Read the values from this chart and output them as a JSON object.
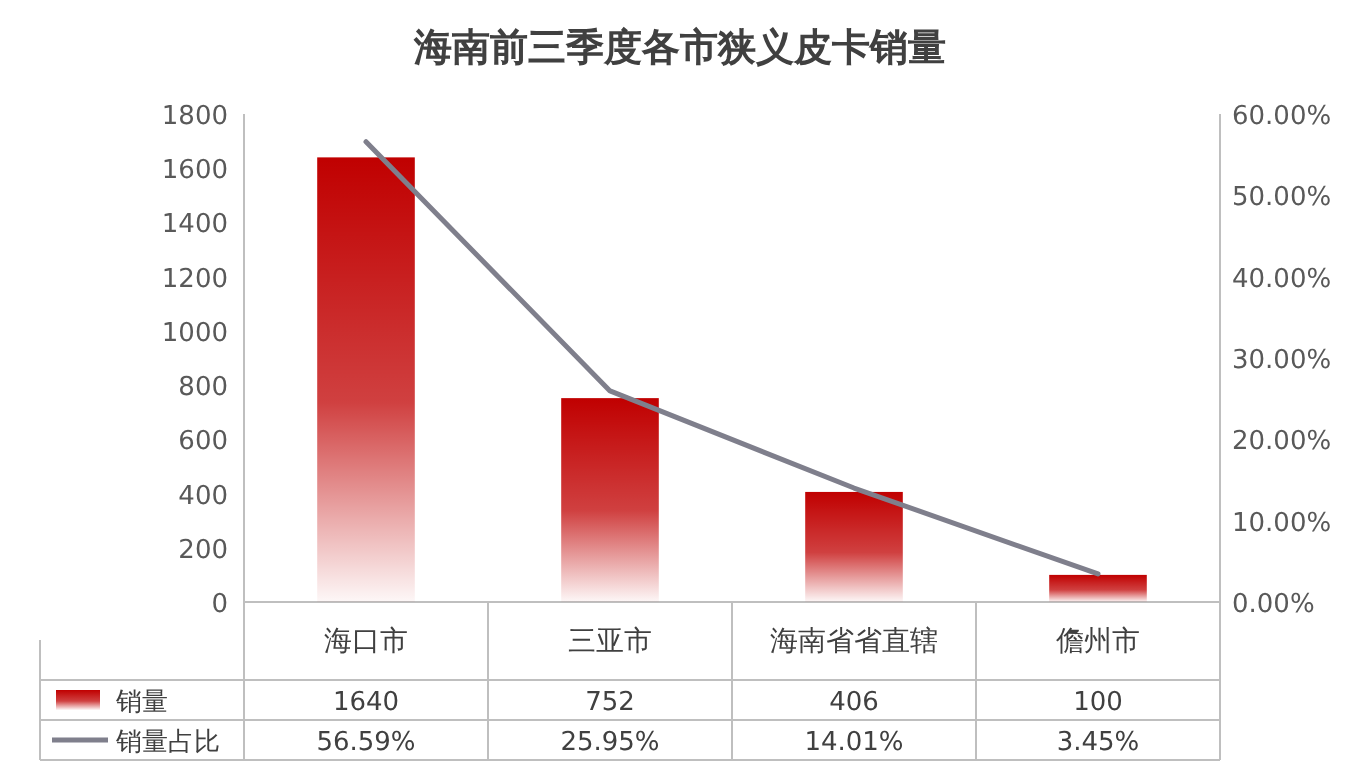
{
  "chart_data": {
    "type": "bar",
    "title": "海南前三季度各市狭义皮卡销量",
    "categories": [
      "海口市",
      "三亚市",
      "海南省省直辖",
      "儋州市"
    ],
    "series": [
      {
        "name": "销量",
        "color": "#c00000",
        "values": [
          1640,
          752,
          406,
          100
        ],
        "value_labels": [
          "1640",
          "752",
          "406",
          "100"
        ]
      },
      {
        "name": "销量占比",
        "type": "line",
        "axis": "y2",
        "color": "#7f7f8c",
        "values": [
          56.59,
          25.95,
          14.01,
          3.45
        ],
        "value_labels": [
          "56.59%",
          "25.95%",
          "14.01%",
          "3.45%"
        ]
      }
    ],
    "ylim": [
      0,
      1800
    ],
    "yticks": [
      0,
      200,
      400,
      600,
      800,
      1000,
      1200,
      1400,
      1600,
      1800
    ],
    "y2lim": [
      0,
      60
    ],
    "y2ticks": [
      {
        "value": 0,
        "label": "0.00%"
      },
      {
        "value": 10,
        "label": "10.00%"
      },
      {
        "value": 20,
        "label": "20.00%"
      },
      {
        "value": 30,
        "label": "30.00%"
      },
      {
        "value": 40,
        "label": "40.00%"
      },
      {
        "value": 50,
        "label": "50.00%"
      },
      {
        "value": 60,
        "label": "60.00%"
      }
    ],
    "grid": false,
    "legend": "bottom"
  }
}
